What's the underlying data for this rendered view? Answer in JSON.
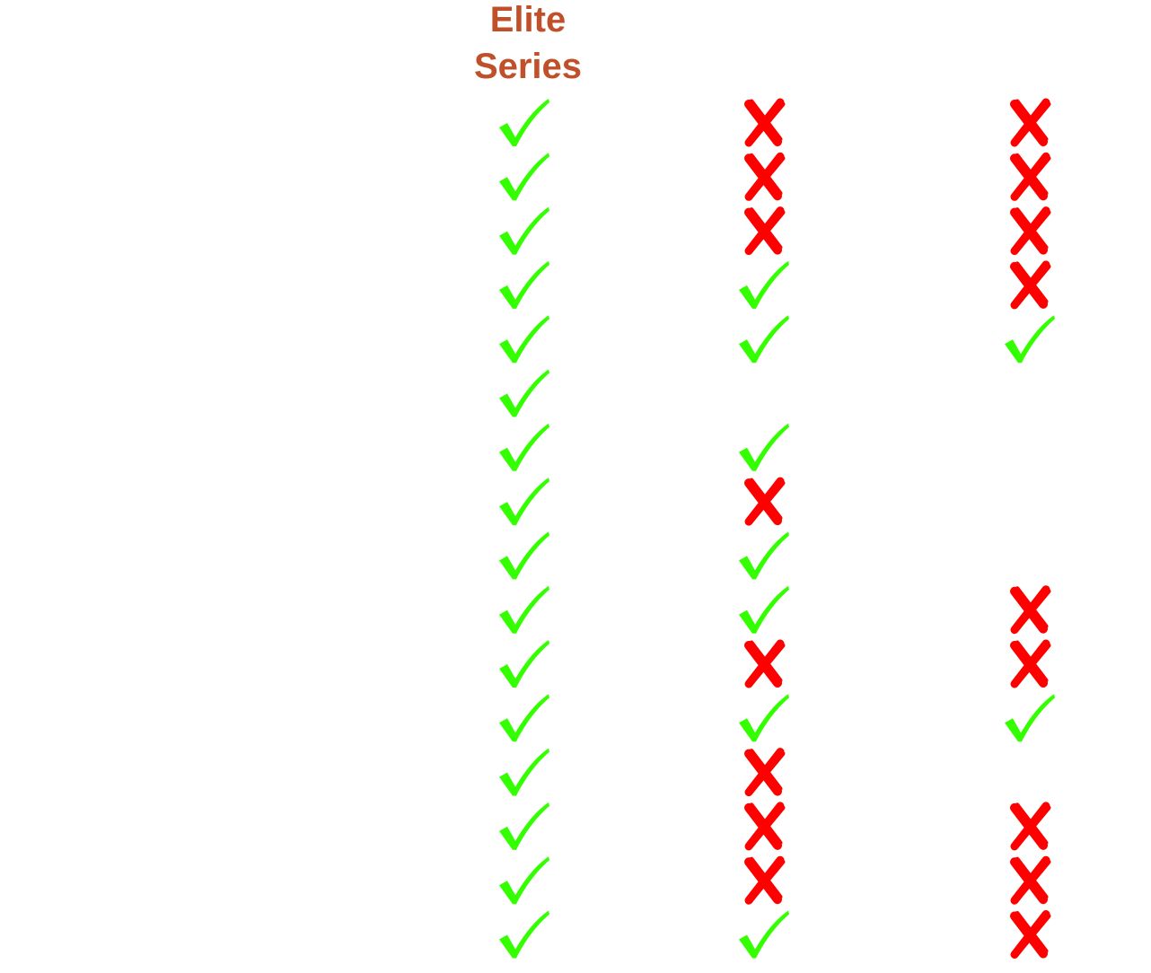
{
  "header": {
    "title": "Elite Series"
  },
  "table": {
    "columns": [
      [
        true,
        true,
        true,
        true,
        true,
        true,
        true,
        true,
        true,
        true,
        true,
        true,
        true,
        true,
        true,
        true
      ],
      [
        false,
        false,
        false,
        true,
        true,
        null,
        true,
        false,
        true,
        true,
        false,
        true,
        false,
        false,
        false,
        true
      ],
      [
        false,
        false,
        false,
        false,
        true,
        null,
        null,
        null,
        null,
        false,
        false,
        true,
        null,
        false,
        false,
        false
      ]
    ]
  }
}
